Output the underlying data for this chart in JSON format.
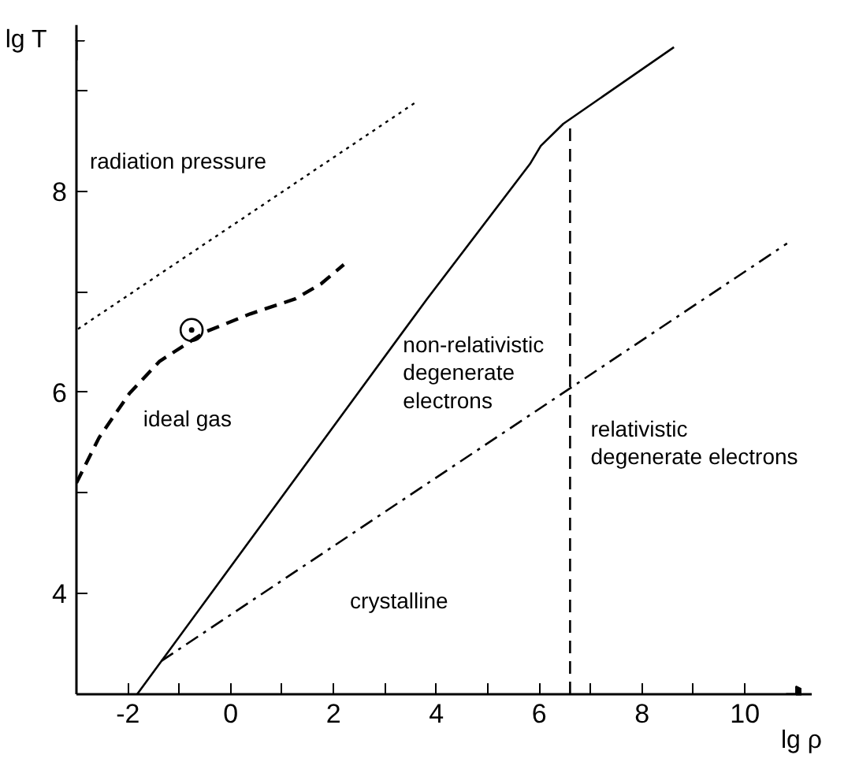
{
  "chart_data": {
    "type": "line",
    "xlabel": "lg ρ",
    "ylabel": "lg T",
    "xlim": [
      -3.0,
      11.1
    ],
    "ylim": [
      3,
      9.5
    ],
    "xticks": [
      {
        "value": -2,
        "label": "-2"
      },
      {
        "value": -1,
        "label": null
      },
      0,
      {
        "value": 1,
        "label": null
      },
      2,
      {
        "value": 3,
        "label": null
      },
      4,
      {
        "value": 5,
        "label": null
      },
      6,
      {
        "value": 7,
        "label": null
      },
      8,
      {
        "value": 9,
        "label": null
      },
      10
    ],
    "yticks": [
      4,
      {
        "value": 5,
        "label": null
      },
      6,
      {
        "value": 7,
        "label": null
      },
      8,
      {
        "value": 9,
        "label": null
      }
    ],
    "grid": false,
    "series": [
      {
        "color": "#000000",
        "line_style": "dotted",
        "x": [
          -2.97,
          3.59
        ],
        "values": [
          6.63,
          8.88
        ]
      },
      {
        "color": "#000000",
        "line_style": "dashed",
        "x": [
          -3.0,
          -2.56,
          -1.97,
          -1.38,
          -0.5,
          0.38,
          1.26,
          1.76,
          2.2
        ],
        "values": [
          5.1,
          5.55,
          5.99,
          6.31,
          6.6,
          6.78,
          6.93,
          7.08,
          7.27
        ]
      },
      {
        "color": "#000000",
        "line_style": "solid",
        "x": [
          -1.82,
          3.82,
          5.82,
          6.03,
          6.47,
          8.62
        ],
        "values": [
          3.0,
          6.93,
          8.27,
          8.45,
          8.67,
          9.43
        ]
      },
      {
        "color": "#000000",
        "line_style": "dashdot",
        "x": [
          -1.35,
          10.82
        ],
        "values": [
          3.33,
          7.48
        ]
      },
      {
        "color": "#000000",
        "line_style": "dashed",
        "x": [
          6.6,
          6.6
        ],
        "values": [
          3.0,
          8.67
        ]
      },
      {
        "type": "scatter",
        "marker": "circle",
        "color": "#000000",
        "x": [
          -0.76
        ],
        "values": [
          6.62
        ]
      }
    ],
    "annotations": [
      "radiation pressure",
      "ideal gas",
      "non-relativistic\ndegenerate\nelectrons",
      "relativistic\ndegenerate electrons",
      "crystalline"
    ]
  }
}
